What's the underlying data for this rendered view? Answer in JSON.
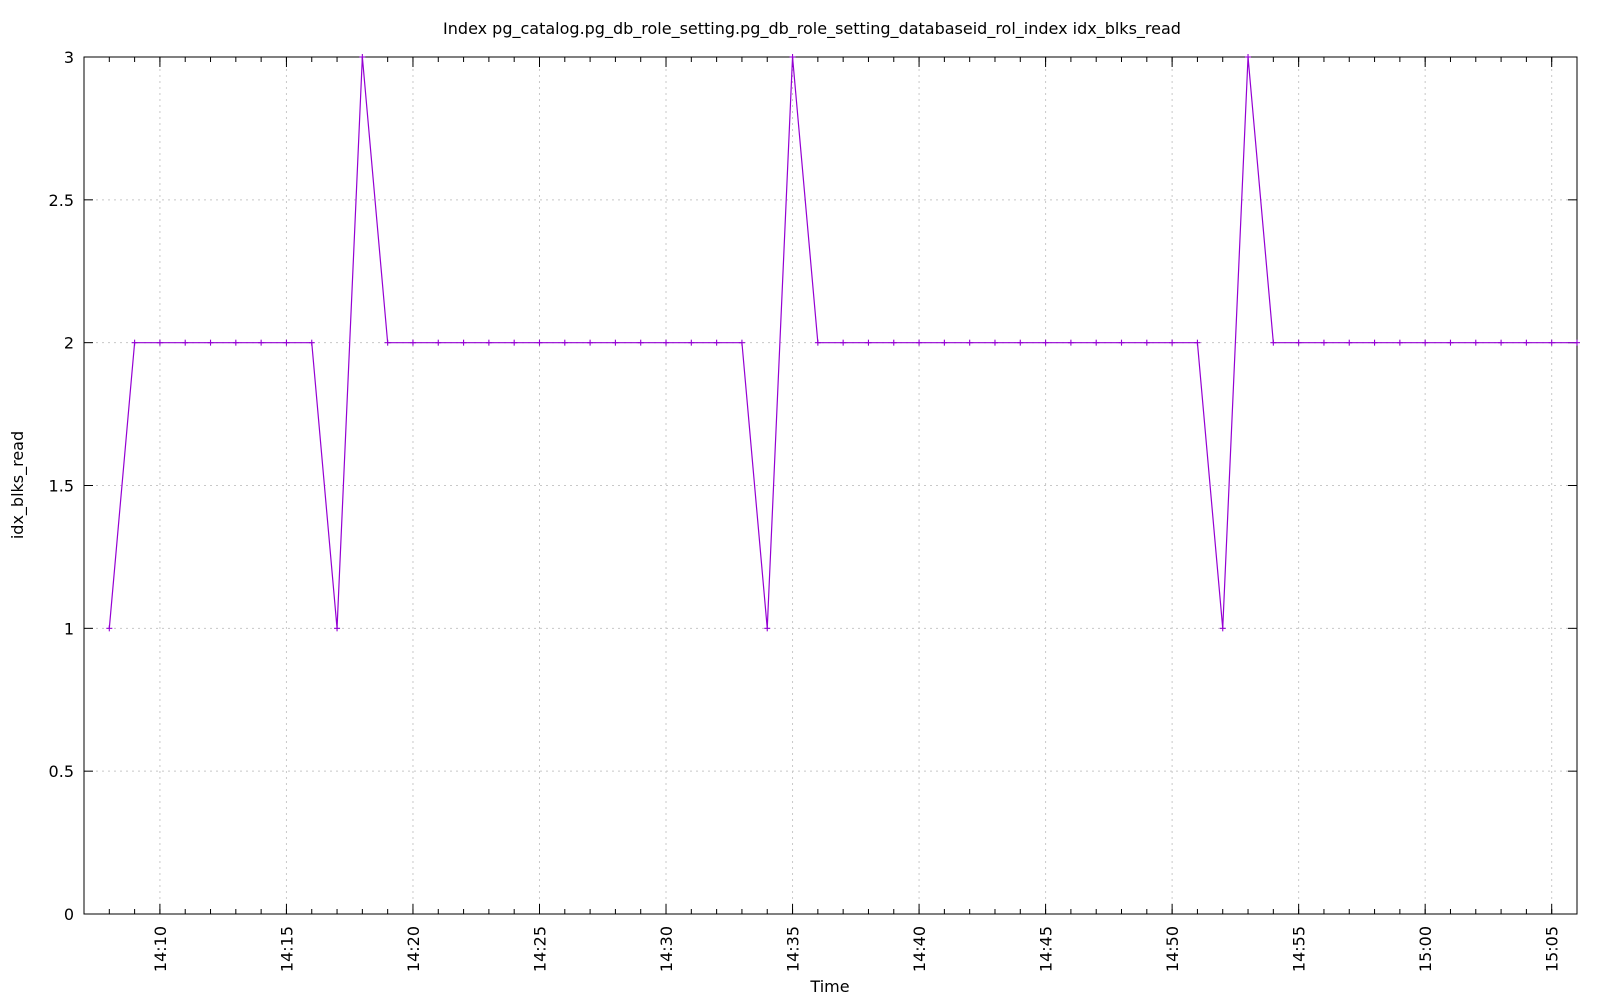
{
  "chart_data": {
    "type": "line",
    "title": "Index pg_catalog.pg_db_role_setting.pg_db_role_setting_databaseid_rol_index idx_blks_read",
    "xlabel": "Time",
    "ylabel": "idx_blks_read",
    "ylim": [
      0,
      3
    ],
    "xlim": [
      "14:07",
      "15:06"
    ],
    "yticks": [
      "0",
      "0.5",
      "1",
      "1.5",
      "2",
      "2.5",
      "3"
    ],
    "xticks": [
      "14:10",
      "14:15",
      "14:20",
      "14:25",
      "14:30",
      "14:35",
      "14:40",
      "14:45",
      "14:50",
      "14:55",
      "15:00",
      "15:05"
    ],
    "grid": true,
    "legend": "none",
    "series": [
      {
        "color": "#9400d3",
        "marker": "plus",
        "x": [
          "14:08",
          "14:09",
          "14:10",
          "14:11",
          "14:12",
          "14:13",
          "14:14",
          "14:15",
          "14:16",
          "14:17",
          "14:18",
          "14:19",
          "14:20",
          "14:21",
          "14:22",
          "14:23",
          "14:24",
          "14:25",
          "14:26",
          "14:27",
          "14:28",
          "14:29",
          "14:30",
          "14:31",
          "14:32",
          "14:33",
          "14:34",
          "14:35",
          "14:36",
          "14:37",
          "14:38",
          "14:39",
          "14:40",
          "14:41",
          "14:42",
          "14:43",
          "14:44",
          "14:45",
          "14:46",
          "14:47",
          "14:48",
          "14:49",
          "14:50",
          "14:51",
          "14:52",
          "14:53",
          "14:54",
          "14:55",
          "14:56",
          "14:57",
          "14:58",
          "14:59",
          "15:00",
          "15:01",
          "15:02",
          "15:03",
          "15:04",
          "15:05",
          "15:06"
        ],
        "values": [
          1,
          2,
          2,
          2,
          2,
          2,
          2,
          2,
          2,
          1,
          3,
          2,
          2,
          2,
          2,
          2,
          2,
          2,
          2,
          2,
          2,
          2,
          2,
          2,
          2,
          2,
          1,
          3,
          2,
          2,
          2,
          2,
          2,
          2,
          2,
          2,
          2,
          2,
          2,
          2,
          2,
          2,
          2,
          2,
          1,
          3,
          2,
          2,
          2,
          2,
          2,
          2,
          2,
          2,
          2,
          2,
          2,
          2,
          2
        ]
      }
    ]
  }
}
